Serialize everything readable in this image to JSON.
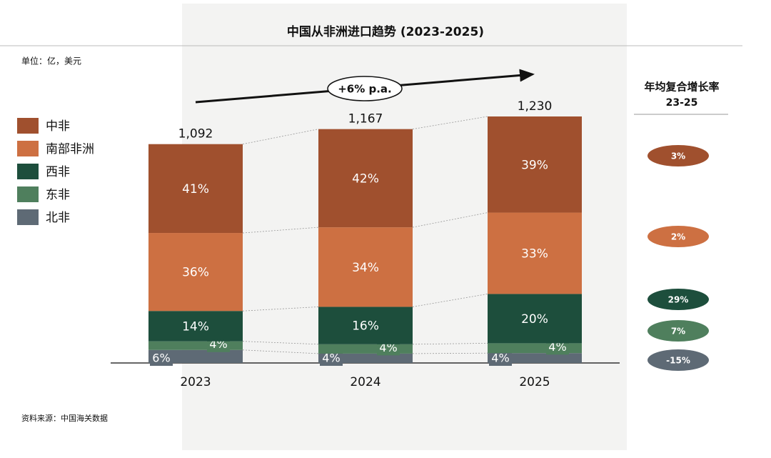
{
  "chart_data": {
    "type": "stacked_bar",
    "title": "中国从非洲进口趋势 (2023-2025)",
    "unit_label": "单位：亿，美元",
    "annotation": "+6% p.a.",
    "source": "资料来源：中国海关数据",
    "categories": [
      "2023",
      "2024",
      "2025"
    ],
    "totals": {
      "values": [
        1092,
        1167,
        1230
      ],
      "value_labels": [
        "1,092",
        "1,167",
        "1,230"
      ]
    },
    "cagr_title": "年均复合增长率",
    "cagr_subtitle": "23-25",
    "series": [
      {
        "name": "中非",
        "color": "#a0502e",
        "values": [
          41,
          42,
          39
        ],
        "value_labels": [
          "41%",
          "42%",
          "39%"
        ],
        "cagr": 3,
        "cagr_label": "3%"
      },
      {
        "name": "南部非洲",
        "color": "#cd7042",
        "values": [
          36,
          34,
          33
        ],
        "value_labels": [
          "36%",
          "34%",
          "33%"
        ],
        "cagr": 2,
        "cagr_label": "2%"
      },
      {
        "name": "西非",
        "color": "#1d4e3c",
        "values": [
          14,
          16,
          20
        ],
        "value_labels": [
          "14%",
          "16%",
          "20%"
        ],
        "cagr": 29,
        "cagr_label": "29%"
      },
      {
        "name": "东非",
        "color": "#4f7f5d",
        "values": [
          4,
          4,
          4
        ],
        "value_labels": [
          "4%",
          "4%",
          "4%"
        ],
        "cagr": 7,
        "cagr_label": "7%"
      },
      {
        "name": "北非",
        "color": "#5e6a75",
        "values": [
          6,
          4,
          4
        ],
        "value_labels": [
          "6%",
          "4%",
          "4%"
        ],
        "cagr": -15,
        "cagr_label": "-15%"
      }
    ]
  }
}
